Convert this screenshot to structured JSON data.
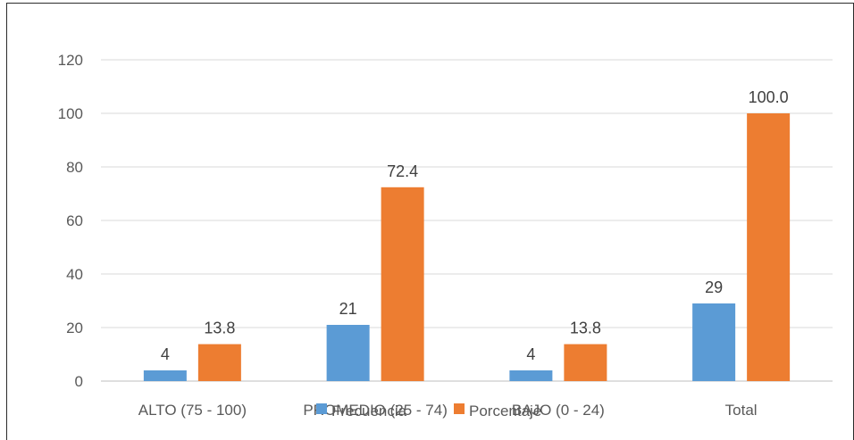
{
  "chart_data": {
    "type": "bar",
    "categories": [
      "ALTO (75 - 100)",
      "PROMEDIO (25 - 74)",
      "BAJO (0 - 24)",
      "Total"
    ],
    "series": [
      {
        "name": "Frecuencia",
        "values": [
          4,
          21,
          4,
          29
        ],
        "labels": [
          "4",
          "21",
          "4",
          "29"
        ],
        "color": "#5B9BD5"
      },
      {
        "name": "Porcentaje",
        "values": [
          13.8,
          72.4,
          13.8,
          100.0
        ],
        "labels": [
          "13.8",
          "72.4",
          "13.8",
          "100.0"
        ],
        "color": "#ED7D31"
      }
    ],
    "title": "",
    "xlabel": "",
    "ylabel": "",
    "ylim": [
      0,
      120
    ],
    "yticks": [
      0,
      20,
      40,
      60,
      80,
      100,
      120
    ],
    "grid": true,
    "gridline_color": "#d9d9d9",
    "legend_position": "bottom"
  }
}
